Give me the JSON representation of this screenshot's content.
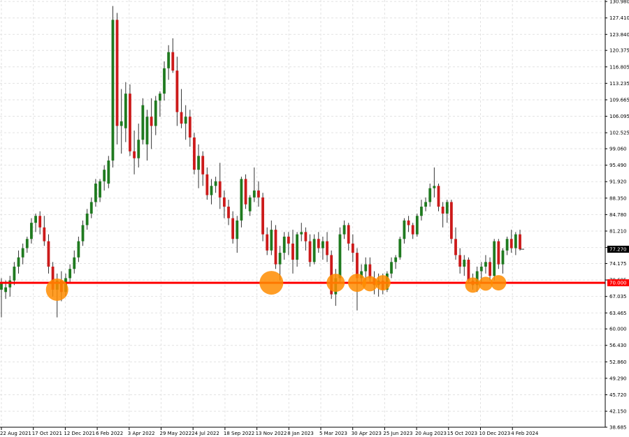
{
  "chart_data": {
    "type": "candlestick",
    "title": "",
    "xlabel": "",
    "ylabel": "",
    "ylim": [
      38.685,
      131.3
    ],
    "grid": true,
    "y_ticks": [
      "130.980",
      "127.410",
      "123.840",
      "120.375",
      "116.805",
      "113.235",
      "109.665",
      "106.095",
      "102.525",
      "99.060",
      "95.490",
      "91.920",
      "88.350",
      "84.780",
      "81.210",
      "77.640",
      "74.175",
      "70.605",
      "67.035",
      "63.465",
      "60.000",
      "56.430",
      "52.860",
      "49.290",
      "45.720",
      "42.150",
      "38.685"
    ],
    "x_ticks": [
      "22 Aug 2021",
      "17 Oct 2021",
      "12 Dec 2021",
      "6 Feb 2022",
      "3 Apr 2022",
      "29 May 2022",
      "24 Jul 2022",
      "18 Sep 2022",
      "13 Nov 2022",
      "8 Jan 2023",
      "5 Mar 2023",
      "30 Apr 2023",
      "25 Jun 2023",
      "20 Aug 2023",
      "15 Oct 2023",
      "10 Dec 2023",
      "4 Feb 2024"
    ],
    "current_price": "77.270",
    "support_level": {
      "label": "70.000",
      "value": 70.0,
      "color": "#ff0000"
    },
    "colors": {
      "bull": "#1f7a1f",
      "bear": "#cc1a1a",
      "wick": "#333333",
      "grid": "#e2e2e2",
      "marker": "#ff8c00"
    },
    "candles": [
      {
        "date": "Aug 2021",
        "o": 68.5,
        "h": 71.0,
        "l": 62.5,
        "c": 70.0
      },
      {
        "date": "Aug 2021",
        "o": 68.0,
        "h": 70.5,
        "l": 66.5,
        "c": 69.0
      },
      {
        "date": "Aug 2021",
        "o": 69.0,
        "h": 71.5,
        "l": 67.0,
        "c": 70.5
      },
      {
        "date": "Sep 2021",
        "o": 70.5,
        "h": 74.5,
        "l": 69.5,
        "c": 73.5
      },
      {
        "date": "Sep 2021",
        "o": 73.5,
        "h": 77.0,
        "l": 72.0,
        "c": 75.5
      },
      {
        "date": "Sep 2021",
        "o": 75.5,
        "h": 78.5,
        "l": 74.0,
        "c": 77.5
      },
      {
        "date": "Sep 2021",
        "o": 77.5,
        "h": 80.0,
        "l": 76.5,
        "c": 79.5
      },
      {
        "date": "Oct 2021",
        "o": 79.5,
        "h": 84.0,
        "l": 78.5,
        "c": 83.0
      },
      {
        "date": "Oct 2021",
        "o": 83.0,
        "h": 85.0,
        "l": 81.0,
        "c": 84.5
      },
      {
        "date": "Oct 2021",
        "o": 84.5,
        "h": 85.5,
        "l": 80.5,
        "c": 82.0
      },
      {
        "date": "Oct 2021",
        "o": 82.0,
        "h": 84.5,
        "l": 78.0,
        "c": 79.0
      },
      {
        "date": "Nov 2021",
        "o": 79.0,
        "h": 80.5,
        "l": 72.0,
        "c": 73.5
      },
      {
        "date": "Nov 2021",
        "o": 73.5,
        "h": 74.5,
        "l": 67.0,
        "c": 68.5
      },
      {
        "date": "Nov 2021",
        "o": 68.5,
        "h": 72.0,
        "l": 62.5,
        "c": 70.5
      },
      {
        "date": "Nov 2021",
        "o": 70.5,
        "h": 72.5,
        "l": 66.0,
        "c": 68.0
      },
      {
        "date": "Dec 2021",
        "o": 68.0,
        "h": 72.0,
        "l": 67.0,
        "c": 71.0
      },
      {
        "date": "Dec 2021",
        "o": 71.0,
        "h": 74.0,
        "l": 70.0,
        "c": 73.0
      },
      {
        "date": "Dec 2021",
        "o": 73.0,
        "h": 77.0,
        "l": 72.0,
        "c": 75.5
      },
      {
        "date": "Dec 2021",
        "o": 75.5,
        "h": 80.0,
        "l": 74.5,
        "c": 79.0
      },
      {
        "date": "Jan 2022",
        "o": 79.0,
        "h": 83.5,
        "l": 78.0,
        "c": 82.5
      },
      {
        "date": "Jan 2022",
        "o": 82.5,
        "h": 86.0,
        "l": 81.5,
        "c": 85.0
      },
      {
        "date": "Jan 2022",
        "o": 85.0,
        "h": 88.5,
        "l": 84.0,
        "c": 87.5
      },
      {
        "date": "Jan 2022",
        "o": 87.5,
        "h": 92.5,
        "l": 86.5,
        "c": 91.5
      },
      {
        "date": "Feb 2022",
        "o": 88.5,
        "h": 92.5,
        "l": 87.5,
        "c": 92.0
      },
      {
        "date": "Feb 2022",
        "o": 92.0,
        "h": 95.5,
        "l": 90.0,
        "c": 94.5
      },
      {
        "date": "Feb 2022",
        "o": 91.5,
        "h": 97.5,
        "l": 90.5,
        "c": 96.5
      },
      {
        "date": "Feb 2022",
        "o": 96.5,
        "h": 130.0,
        "l": 95.0,
        "c": 127.0
      },
      {
        "date": "Mar 2022",
        "o": 127.0,
        "h": 128.5,
        "l": 100.0,
        "c": 104.0
      },
      {
        "date": "Mar 2022",
        "o": 104.0,
        "h": 112.0,
        "l": 98.0,
        "c": 105.0
      },
      {
        "date": "Mar 2022",
        "o": 103.5,
        "h": 113.5,
        "l": 100.5,
        "c": 111.0
      },
      {
        "date": "Mar 2022",
        "o": 111.0,
        "h": 113.0,
        "l": 97.5,
        "c": 98.5
      },
      {
        "date": "Apr 2022",
        "o": 98.5,
        "h": 103.0,
        "l": 93.5,
        "c": 97.0
      },
      {
        "date": "Apr 2022",
        "o": 97.0,
        "h": 104.5,
        "l": 95.0,
        "c": 101.0
      },
      {
        "date": "Apr 2022",
        "o": 101.0,
        "h": 110.0,
        "l": 100.0,
        "c": 108.5
      },
      {
        "date": "Apr 2022",
        "o": 100.0,
        "h": 107.5,
        "l": 96.5,
        "c": 106.0
      },
      {
        "date": "May 2022",
        "o": 106.0,
        "h": 110.0,
        "l": 99.0,
        "c": 104.0
      },
      {
        "date": "May 2022",
        "o": 104.0,
        "h": 110.5,
        "l": 102.0,
        "c": 109.5
      },
      {
        "date": "May 2022",
        "o": 109.5,
        "h": 111.5,
        "l": 106.0,
        "c": 111.0
      },
      {
        "date": "May 2022",
        "o": 111.0,
        "h": 118.0,
        "l": 109.5,
        "c": 116.5
      },
      {
        "date": "Jun 2022",
        "o": 116.5,
        "h": 121.5,
        "l": 114.0,
        "c": 120.0
      },
      {
        "date": "Jun 2022",
        "o": 120.0,
        "h": 123.0,
        "l": 115.5,
        "c": 116.0
      },
      {
        "date": "Jun 2022",
        "o": 116.0,
        "h": 119.0,
        "l": 104.0,
        "c": 107.0
      },
      {
        "date": "Jun 2022",
        "o": 107.0,
        "h": 112.0,
        "l": 103.5,
        "c": 104.5
      },
      {
        "date": "Jul 2022",
        "o": 104.5,
        "h": 108.5,
        "l": 101.0,
        "c": 106.0
      },
      {
        "date": "Jul 2022",
        "o": 106.0,
        "h": 107.5,
        "l": 99.5,
        "c": 101.5
      },
      {
        "date": "Jul 2022",
        "o": 101.5,
        "h": 102.5,
        "l": 93.5,
        "c": 94.5
      },
      {
        "date": "Jul 2022",
        "o": 94.5,
        "h": 100.0,
        "l": 90.5,
        "c": 97.5
      },
      {
        "date": "Aug 2022",
        "o": 97.5,
        "h": 98.5,
        "l": 91.0,
        "c": 93.5
      },
      {
        "date": "Aug 2022",
        "o": 93.5,
        "h": 95.0,
        "l": 88.0,
        "c": 89.0
      },
      {
        "date": "Aug 2022",
        "o": 89.0,
        "h": 92.5,
        "l": 87.0,
        "c": 91.0
      },
      {
        "date": "Aug 2022",
        "o": 91.0,
        "h": 93.0,
        "l": 89.5,
        "c": 92.0
      },
      {
        "date": "Sep 2022",
        "o": 92.0,
        "h": 96.0,
        "l": 86.0,
        "c": 88.5
      },
      {
        "date": "Sep 2022",
        "o": 88.5,
        "h": 90.0,
        "l": 84.0,
        "c": 86.5
      },
      {
        "date": "Sep 2022",
        "o": 86.5,
        "h": 88.0,
        "l": 82.5,
        "c": 84.0
      },
      {
        "date": "Sep 2022",
        "o": 84.0,
        "h": 85.5,
        "l": 78.5,
        "c": 79.5
      },
      {
        "date": "Oct 2022",
        "o": 79.5,
        "h": 84.5,
        "l": 76.5,
        "c": 83.5
      },
      {
        "date": "Oct 2022",
        "o": 83.5,
        "h": 93.0,
        "l": 82.0,
        "c": 92.5
      },
      {
        "date": "Oct 2022",
        "o": 92.5,
        "h": 93.5,
        "l": 86.0,
        "c": 87.0
      },
      {
        "date": "Oct 2022",
        "o": 85.5,
        "h": 89.0,
        "l": 84.5,
        "c": 88.5
      },
      {
        "date": "Nov 2022",
        "o": 88.5,
        "h": 95.0,
        "l": 87.5,
        "c": 90.0
      },
      {
        "date": "Nov 2022",
        "o": 90.0,
        "h": 92.0,
        "l": 86.5,
        "c": 88.5
      },
      {
        "date": "Nov 2022",
        "o": 88.5,
        "h": 89.5,
        "l": 79.0,
        "c": 80.5
      },
      {
        "date": "Nov 2022",
        "o": 80.5,
        "h": 82.0,
        "l": 76.0,
        "c": 77.0
      },
      {
        "date": "Dec 2022",
        "o": 77.0,
        "h": 83.5,
        "l": 76.0,
        "c": 81.5
      },
      {
        "date": "Dec 2022",
        "o": 81.5,
        "h": 82.5,
        "l": 73.0,
        "c": 74.0
      },
      {
        "date": "Dec 2022",
        "o": 74.0,
        "h": 78.0,
        "l": 70.5,
        "c": 76.5
      },
      {
        "date": "Dec 2022",
        "o": 76.5,
        "h": 81.0,
        "l": 75.0,
        "c": 80.0
      },
      {
        "date": "Jan 2023",
        "o": 80.0,
        "h": 81.0,
        "l": 76.0,
        "c": 78.5
      },
      {
        "date": "Jan 2023",
        "o": 78.5,
        "h": 81.5,
        "l": 72.0,
        "c": 75.0
      },
      {
        "date": "Jan 2023",
        "o": 75.0,
        "h": 81.0,
        "l": 73.5,
        "c": 80.5
      },
      {
        "date": "Jan 2023",
        "o": 80.5,
        "h": 83.0,
        "l": 79.0,
        "c": 81.0
      },
      {
        "date": "Feb 2023",
        "o": 81.0,
        "h": 82.0,
        "l": 77.0,
        "c": 79.0
      },
      {
        "date": "Feb 2023",
        "o": 79.0,
        "h": 80.5,
        "l": 73.5,
        "c": 74.5
      },
      {
        "date": "Feb 2023",
        "o": 74.5,
        "h": 80.5,
        "l": 74.0,
        "c": 79.5
      },
      {
        "date": "Feb 2023",
        "o": 79.5,
        "h": 81.0,
        "l": 76.5,
        "c": 77.5
      },
      {
        "date": "Mar 2023",
        "o": 77.5,
        "h": 80.0,
        "l": 75.0,
        "c": 79.0
      },
      {
        "date": "Mar 2023",
        "o": 79.0,
        "h": 81.0,
        "l": 74.5,
        "c": 76.0
      },
      {
        "date": "Mar 2023",
        "o": 76.0,
        "h": 77.0,
        "l": 66.5,
        "c": 67.5
      },
      {
        "date": "Mar 2023",
        "o": 67.5,
        "h": 73.0,
        "l": 65.0,
        "c": 71.0
      },
      {
        "date": "Apr 2023",
        "o": 71.0,
        "h": 82.0,
        "l": 70.0,
        "c": 80.5
      },
      {
        "date": "Apr 2023",
        "o": 80.5,
        "h": 83.5,
        "l": 79.5,
        "c": 82.5
      },
      {
        "date": "Apr 2023",
        "o": 82.5,
        "h": 83.0,
        "l": 77.0,
        "c": 78.5
      },
      {
        "date": "Apr 2023",
        "o": 78.5,
        "h": 80.5,
        "l": 74.5,
        "c": 76.5
      },
      {
        "date": "May 2023",
        "o": 76.5,
        "h": 77.5,
        "l": 64.0,
        "c": 71.0
      },
      {
        "date": "May 2023",
        "o": 71.0,
        "h": 74.0,
        "l": 69.5,
        "c": 72.5
      },
      {
        "date": "May 2023",
        "o": 72.5,
        "h": 75.5,
        "l": 70.5,
        "c": 74.0
      },
      {
        "date": "May 2023",
        "o": 74.0,
        "h": 75.5,
        "l": 70.0,
        "c": 71.0
      },
      {
        "date": "Jun 2023",
        "o": 71.0,
        "h": 72.5,
        "l": 67.5,
        "c": 69.5
      },
      {
        "date": "Jun 2023",
        "o": 69.5,
        "h": 72.0,
        "l": 67.0,
        "c": 70.5
      },
      {
        "date": "Jun 2023",
        "o": 70.5,
        "h": 72.0,
        "l": 67.5,
        "c": 68.5
      },
      {
        "date": "Jun 2023",
        "o": 68.5,
        "h": 72.5,
        "l": 68.0,
        "c": 72.0
      },
      {
        "date": "Jul 2023",
        "o": 72.0,
        "h": 75.5,
        "l": 71.0,
        "c": 74.5
      },
      {
        "date": "Jul 2023",
        "o": 74.5,
        "h": 76.0,
        "l": 73.0,
        "c": 75.5
      },
      {
        "date": "Jul 2023",
        "o": 75.5,
        "h": 80.0,
        "l": 75.0,
        "c": 79.5
      },
      {
        "date": "Jul 2023",
        "o": 79.5,
        "h": 84.0,
        "l": 78.5,
        "c": 83.5
      },
      {
        "date": "Aug 2023",
        "o": 83.5,
        "h": 84.5,
        "l": 81.0,
        "c": 82.5
      },
      {
        "date": "Aug 2023",
        "o": 82.5,
        "h": 83.0,
        "l": 79.5,
        "c": 80.5
      },
      {
        "date": "Aug 2023",
        "o": 80.5,
        "h": 85.0,
        "l": 80.0,
        "c": 84.5
      },
      {
        "date": "Aug 2023",
        "o": 84.5,
        "h": 88.0,
        "l": 83.5,
        "c": 86.5
      },
      {
        "date": "Sep 2023",
        "o": 86.5,
        "h": 88.5,
        "l": 85.5,
        "c": 87.5
      },
      {
        "date": "Sep 2023",
        "o": 87.5,
        "h": 91.5,
        "l": 86.5,
        "c": 90.5
      },
      {
        "date": "Sep 2023",
        "o": 90.5,
        "h": 95.0,
        "l": 88.5,
        "c": 91.0
      },
      {
        "date": "Sep 2023",
        "o": 91.0,
        "h": 91.5,
        "l": 85.5,
        "c": 86.5
      },
      {
        "date": "Oct 2023",
        "o": 86.5,
        "h": 87.5,
        "l": 82.0,
        "c": 85.0
      },
      {
        "date": "Oct 2023",
        "o": 85.0,
        "h": 88.0,
        "l": 83.0,
        "c": 87.5
      },
      {
        "date": "Oct 2023",
        "o": 87.5,
        "h": 88.0,
        "l": 78.5,
        "c": 79.5
      },
      {
        "date": "Oct 2023",
        "o": 79.5,
        "h": 82.0,
        "l": 75.0,
        "c": 76.0
      },
      {
        "date": "Nov 2023",
        "o": 76.0,
        "h": 77.5,
        "l": 72.0,
        "c": 73.5
      },
      {
        "date": "Nov 2023",
        "o": 73.5,
        "h": 76.0,
        "l": 71.5,
        "c": 75.0
      },
      {
        "date": "Nov 2023",
        "o": 75.0,
        "h": 75.5,
        "l": 70.0,
        "c": 70.5
      },
      {
        "date": "Nov 2023",
        "o": 70.5,
        "h": 72.0,
        "l": 68.5,
        "c": 69.5
      },
      {
        "date": "Dec 2023",
        "o": 69.5,
        "h": 73.5,
        "l": 68.0,
        "c": 72.5
      },
      {
        "date": "Dec 2023",
        "o": 72.5,
        "h": 74.5,
        "l": 70.0,
        "c": 73.5
      },
      {
        "date": "Dec 2023",
        "o": 73.5,
        "h": 76.0,
        "l": 72.0,
        "c": 74.5
      },
      {
        "date": "Dec 2023",
        "o": 74.5,
        "h": 75.5,
        "l": 70.5,
        "c": 71.5
      },
      {
        "date": "Jan 2024",
        "o": 71.5,
        "h": 79.5,
        "l": 70.5,
        "c": 79.0
      },
      {
        "date": "Jan 2024",
        "o": 79.0,
        "h": 79.5,
        "l": 73.0,
        "c": 74.0
      },
      {
        "date": "Jan 2024",
        "o": 74.0,
        "h": 77.5,
        "l": 72.0,
        "c": 77.0
      },
      {
        "date": "Jan 2024",
        "o": 77.0,
        "h": 80.0,
        "l": 76.0,
        "c": 79.5
      },
      {
        "date": "Feb 2024",
        "o": 79.5,
        "h": 81.5,
        "l": 76.5,
        "c": 77.5
      },
      {
        "date": "Feb 2024",
        "o": 77.5,
        "h": 81.0,
        "l": 76.0,
        "c": 80.5
      },
      {
        "date": "Feb 2024",
        "o": 80.5,
        "h": 81.5,
        "l": 77.0,
        "c": 77.3
      }
    ],
    "highlight_markers": [
      {
        "date": "Nov 2021",
        "price": 68.5
      },
      {
        "date": "Nov 2022",
        "price": 70.0
      },
      {
        "date": "Mar 2023",
        "price": 70.0
      },
      {
        "date": "May 2023",
        "price": 70.0
      },
      {
        "date": "Jun 2023",
        "price": 69.8
      },
      {
        "date": "Jun 2023",
        "price": 70.0
      },
      {
        "date": "Nov 2023",
        "price": 69.5
      },
      {
        "date": "Dec 2023",
        "price": 69.8
      },
      {
        "date": "Dec 2023",
        "price": 70.0
      }
    ]
  }
}
